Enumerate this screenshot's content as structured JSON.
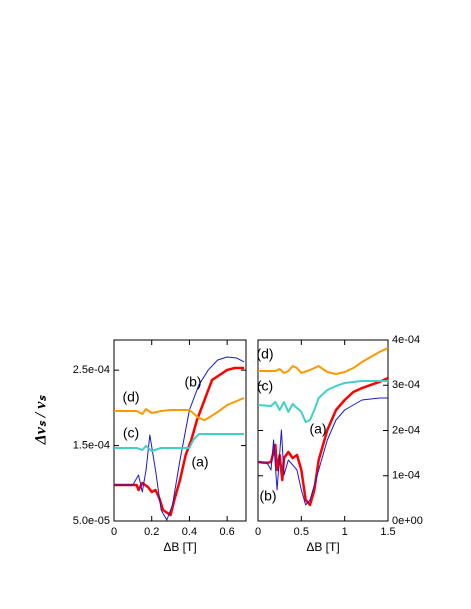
{
  "chart_data": [
    {
      "type": "line",
      "xlabel": "ΔB [T]",
      "ylabel": "Δvₛ / vₛ",
      "yaxis_side": "left",
      "xlim": [
        0,
        0.7
      ],
      "xticks": [
        0,
        0.2,
        0.4,
        0.6
      ],
      "ylim": [
        5e-05,
        0.00029
      ],
      "yticks": [
        {
          "value": 5e-05,
          "label": "5.0e-05"
        },
        {
          "value": 0.00015,
          "label": "1.5e-04"
        },
        {
          "value": 0.00025,
          "label": "2.5e-04"
        }
      ],
      "series": [
        {
          "name": "(a)",
          "color": "#ff0000",
          "line_width": 2.5,
          "x": [
            0,
            0.12,
            0.13,
            0.15,
            0.18,
            0.2,
            0.22,
            0.24,
            0.26,
            0.3,
            0.32,
            0.35,
            0.38,
            0.41,
            0.44,
            0.48,
            0.52,
            0.56,
            0.6,
            0.64,
            0.69
          ],
          "values": [
            9.77e-05,
            9.77e-05,
            9.11e-05,
            0.0001004,
            9.51e-05,
            8.85e-05,
            9.11e-05,
            8.05e-05,
            6.46e-05,
            5.79e-05,
            7.79e-05,
            0.0001044,
            0.0001375,
            0.0001574,
            0.0001839,
            0.0002105,
            0.000237,
            0.0002436,
            0.0002503,
            0.0002529,
            0.0002529
          ]
        },
        {
          "name": "(b)",
          "color": "#1a1acc",
          "line_width": 1,
          "x": [
            0,
            0.1,
            0.13,
            0.15,
            0.17,
            0.19,
            0.22,
            0.25,
            0.28,
            0.31,
            0.35,
            0.4,
            0.45,
            0.5,
            0.55,
            0.6,
            0.65,
            0.69
          ],
          "values": [
            9.77e-05,
            9.77e-05,
            0.000111,
            8.85e-05,
            0.0001176,
            0.0001641,
            0.0001176,
            6.46e-05,
            5.13e-05,
            7.12e-05,
            0.0001309,
            0.0001972,
            0.0002304,
            0.0002503,
            0.0002635,
            0.0002675,
            0.0002662,
            0.0002609
          ]
        },
        {
          "name": "(c)",
          "color": "#40d0c8",
          "line_width": 2,
          "x": [
            0,
            0.12,
            0.15,
            0.17,
            0.2,
            0.25,
            0.4,
            0.42,
            0.45,
            0.69
          ],
          "values": [
            0.0001468,
            0.0001468,
            0.0001442,
            0.0001495,
            0.0001428,
            0.0001468,
            0.0001468,
            0.0001574,
            0.0001654,
            0.0001654
          ]
        },
        {
          "name": "(d)",
          "color": "#ff9900",
          "line_width": 2,
          "x": [
            0,
            0.12,
            0.15,
            0.17,
            0.2,
            0.25,
            0.3,
            0.4,
            0.45,
            0.48,
            0.5,
            0.55,
            0.6,
            0.69
          ],
          "values": [
            0.0001959,
            0.0001959,
            0.0001919,
            0.0001985,
            0.0001932,
            0.0001959,
            0.0001972,
            0.0001972,
            0.0001866,
            0.0001839,
            0.0001866,
            0.0001946,
            0.0002038,
            0.0002131
          ]
        }
      ]
    },
    {
      "type": "line",
      "xlabel": "ΔB [T]",
      "yaxis_side": "right",
      "xlim": [
        0,
        1.5
      ],
      "xticks": [
        0,
        0.5,
        1,
        1.5
      ],
      "ylim": [
        0,
        0.0004
      ],
      "yticks": [
        {
          "value": 0,
          "label": "0e+00"
        },
        {
          "value": 0.0001,
          "label": "1e-04"
        },
        {
          "value": 0.0002,
          "label": "2e-04"
        },
        {
          "value": 0.0003,
          "label": "3e-04"
        },
        {
          "value": 0.0004,
          "label": "4e-04"
        }
      ],
      "series": [
        {
          "name": "(a)",
          "color": "#ff0000",
          "line_width": 2.5,
          "x": [
            0,
            0.1,
            0.15,
            0.2,
            0.22,
            0.25,
            0.28,
            0.3,
            0.35,
            0.4,
            0.45,
            0.5,
            0.55,
            0.6,
            0.65,
            0.7,
            0.8,
            0.9,
            1.0,
            1.1,
            1.2,
            1.3,
            1.4,
            1.5
          ],
          "values": [
            0.0001304,
            0.0001282,
            0.0001304,
            0.000168,
            0.0001127,
            0.0001459,
            9.06e-05,
            0.0001392,
            0.0001525,
            0.0001392,
            0.0001459,
            0.0001127,
            4.64e-05,
            3.54e-05,
            6.85e-05,
            0.0001348,
            0.0002011,
            0.0002453,
            0.0002674,
            0.0002851,
            0.0002939,
            0.0003006,
            0.0003072,
            0.000316
          ]
        },
        {
          "name": "(b)",
          "color": "#1a1acc",
          "line_width": 1,
          "x": [
            0,
            0.1,
            0.15,
            0.18,
            0.22,
            0.27,
            0.3,
            0.35,
            0.4,
            0.45,
            0.5,
            0.55,
            0.6,
            0.7,
            0.8,
            0.9,
            1.0,
            1.2,
            1.4,
            1.5
          ],
          "values": [
            0.0001304,
            0.0001304,
            0.0001127,
            0.000179,
            6.85e-05,
            0.0002011,
            0.0001017,
            0.0001348,
            0.0001238,
            0.0001127,
            6.85e-05,
            3.54e-05,
            4.64e-05,
            0.0001127,
            0.000179,
            0.0002232,
            0.0002453,
            0.0002674,
            0.0002718,
            0.0002718
          ]
        },
        {
          "name": "(c)",
          "color": "#40d0c8",
          "line_width": 2,
          "x": [
            0,
            0.15,
            0.2,
            0.25,
            0.3,
            0.35,
            0.4,
            0.45,
            0.5,
            0.55,
            0.6,
            0.65,
            0.7,
            0.8,
            0.9,
            1.0,
            1.2,
            1.5
          ],
          "values": [
            0.0002564,
            0.0002541,
            0.000263,
            0.0002453,
            0.000263,
            0.0002409,
            0.0002586,
            0.0002497,
            0.0002409,
            0.0002188,
            0.0002232,
            0.0002453,
            0.0002718,
            0.0002895,
            0.0002983,
            0.000305,
            0.0003094,
            0.0003094
          ]
        },
        {
          "name": "(d)",
          "color": "#ff9900",
          "line_width": 2,
          "x": [
            0,
            0.2,
            0.25,
            0.3,
            0.35,
            0.4,
            0.45,
            0.5,
            0.6,
            0.7,
            0.8,
            0.9,
            1.0,
            1.1,
            1.2,
            1.3,
            1.4,
            1.5
          ],
          "values": [
            0.0003315,
            0.0003315,
            0.0003359,
            0.0003271,
            0.0003315,
            0.0003425,
            0.0003381,
            0.0003271,
            0.0003337,
            0.0003425,
            0.0003293,
            0.0003249,
            0.0003293,
            0.0003381,
            0.0003514,
            0.0003624,
            0.0003735,
            0.0003823
          ]
        }
      ]
    }
  ]
}
